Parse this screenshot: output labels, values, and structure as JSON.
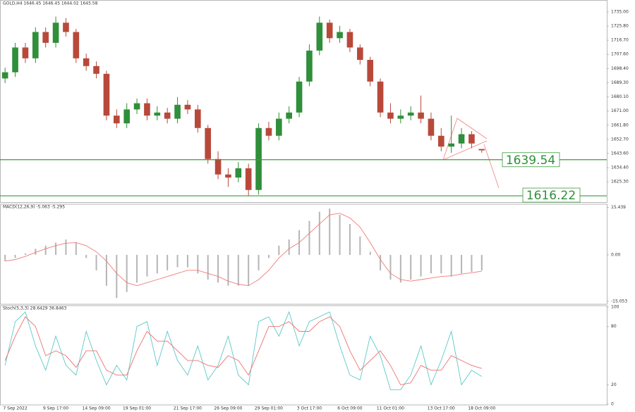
{
  "chart_data": [
    {
      "type": "candlestick",
      "title": "GOLD,H4  1646.45 1646.45 1644.02 1645.58",
      "categories": [
        null,
        "7 Sep 2022",
        null,
        null,
        null,
        "9 Sep 17:00",
        null,
        null,
        null,
        "14 Sep 09:00",
        null,
        null,
        null,
        "19 Sep 01:00",
        null,
        null,
        null,
        null,
        "21 Sep 17:00",
        null,
        null,
        null,
        "26 Sep 09:00",
        null,
        null,
        null,
        "29 Sep 01:00",
        null,
        null,
        null,
        "3 Oct 17:00",
        null,
        null,
        null,
        "6 Oct 09:00",
        null,
        null,
        null,
        "11 Oct 01:00",
        null,
        null,
        null,
        null,
        "13 Oct 17:00",
        null,
        null,
        null,
        "18 Oct 09:00"
      ],
      "open": [
        1692,
        1696,
        1712,
        1705,
        1722,
        1715,
        1728,
        1722,
        1705,
        1700,
        1695,
        1668,
        1663,
        1672,
        1676,
        1668,
        1670,
        1666,
        1675,
        1672,
        1660,
        1640,
        1630,
        1628,
        1634,
        1620,
        1660,
        1655,
        1666,
        1670,
        1690,
        1710,
        1728,
        1718,
        1722,
        1712,
        1704,
        1690,
        1670,
        1666,
        1668,
        1670,
        1666,
        1655,
        1648,
        1650,
        1656,
        1646.45
      ],
      "high": [
        1699,
        1715,
        1715,
        1725,
        1725,
        1732,
        1731,
        1724,
        1708,
        1703,
        1697,
        1672,
        1676,
        1679,
        1679,
        1674,
        1673,
        1680,
        1678,
        1675,
        1662,
        1645,
        1634,
        1638,
        1637,
        1663,
        1664,
        1670,
        1674,
        1693,
        1714,
        1732,
        1730,
        1726,
        1724,
        1714,
        1706,
        1692,
        1676,
        1672,
        1674,
        1681,
        1670,
        1660,
        1668,
        1660,
        1658,
        1646.45
      ],
      "low": [
        1689,
        1693,
        1702,
        1702,
        1712,
        1712,
        1719,
        1702,
        1697,
        1692,
        1665,
        1660,
        1660,
        1669,
        1665,
        1665,
        1663,
        1663,
        1669,
        1657,
        1637,
        1627,
        1622,
        1625,
        1616.5,
        1617,
        1652,
        1652,
        1663,
        1667,
        1687,
        1707,
        1715,
        1715,
        1709,
        1701,
        1687,
        1667,
        1663,
        1663,
        1665,
        1663,
        1652,
        1645,
        1644,
        1647,
        1647,
        1644.02
      ],
      "close": [
        1696,
        1712,
        1705,
        1722,
        1715,
        1728,
        1722,
        1705,
        1700,
        1695,
        1668,
        1663,
        1672,
        1676,
        1668,
        1670,
        1666,
        1675,
        1672,
        1660,
        1640,
        1630,
        1628,
        1634,
        1620,
        1660,
        1655,
        1666,
        1670,
        1690,
        1710,
        1728,
        1718,
        1722,
        1712,
        1704,
        1690,
        1670,
        1666,
        1668,
        1670,
        1666,
        1655,
        1648,
        1650,
        1656,
        1650,
        1645.58
      ],
      "up_color": "#2f8f3a",
      "down_color": "#b8493a",
      "level_color": "#3a9a3a",
      "levels": [
        1639.54,
        1616.22
      ],
      "ylim": [
        1612.6,
        1741.3
      ],
      "yticks": [
        {
          "value": 1735,
          "label": "1735.00"
        },
        {
          "value": 1725.8,
          "label": "1725.80"
        },
        {
          "value": 1716.7,
          "label": "1716.70"
        },
        {
          "value": 1707.6,
          "label": "1707.60"
        },
        {
          "value": 1698.4,
          "label": "1698.40"
        },
        {
          "value": 1689.3,
          "label": "1689.30"
        },
        {
          "value": 1680.1,
          "label": "1680.10"
        },
        {
          "value": 1671,
          "label": "1671.00"
        },
        {
          "value": 1661.8,
          "label": "1661.80"
        },
        {
          "value": 1652.7,
          "label": "1652.70"
        },
        {
          "value": 1643.6,
          "label": "1643.60"
        },
        {
          "value": 1634.4,
          "label": "1634.40"
        },
        {
          "value": 1625.3,
          "label": "1625.30"
        }
      ]
    },
    {
      "type": "macd",
      "title": "MACD(12,26,9) -5.063 -5.295",
      "histogram": [
        -2,
        -1,
        0.5,
        2,
        3,
        4,
        5,
        4,
        -1,
        -5,
        -10,
        -14,
        -12,
        -9,
        -7,
        -6,
        -5,
        -4,
        -4,
        -6,
        -8,
        -9,
        -10,
        -10,
        -10,
        -5,
        -1,
        3,
        5,
        8,
        11,
        14,
        15,
        13,
        10,
        6,
        1,
        -5,
        -8,
        -9,
        -8,
        -7,
        -6,
        -6,
        -7,
        -6,
        -5.5,
        -5.063
      ],
      "signal": [
        -2,
        -1.5,
        -0.5,
        0.8,
        2,
        3,
        3.8,
        4,
        3,
        1,
        -2,
        -6,
        -9,
        -10,
        -9,
        -8,
        -7,
        -6,
        -5,
        -5,
        -6,
        -7,
        -8.5,
        -9.5,
        -10,
        -8,
        -5,
        -1,
        2,
        4,
        7,
        10,
        13,
        13.5,
        12,
        9,
        4,
        -1.5,
        -6,
        -8,
        -8.5,
        -8,
        -7.5,
        -7,
        -6.8,
        -6.2,
        -5.8,
        -5.295
      ],
      "histogram_color": "#b5b5b5",
      "signal_color": "#f07a7a",
      "ylim": [
        -16,
        16.2
      ],
      "yticks": [
        {
          "value": 15.439,
          "label": "15.439"
        },
        {
          "value": 0,
          "label": "0.00"
        },
        {
          "value": -15.053,
          "label": "-15.053"
        }
      ]
    },
    {
      "type": "stochastic",
      "title": "Stoch(5,3,3) 28.6429 36.8463",
      "k": [
        40,
        85,
        95,
        60,
        35,
        70,
        40,
        30,
        75,
        45,
        20,
        40,
        25,
        80,
        85,
        40,
        75,
        45,
        30,
        60,
        25,
        40,
        70,
        30,
        20,
        85,
        90,
        70,
        95,
        60,
        85,
        90,
        95,
        60,
        30,
        25,
        70,
        50,
        15,
        15,
        30,
        60,
        20,
        45,
        75,
        20,
        35,
        28.6429
      ],
      "d": [
        45,
        70,
        90,
        80,
        50,
        55,
        50,
        38,
        55,
        55,
        35,
        30,
        30,
        55,
        75,
        65,
        65,
        55,
        45,
        45,
        40,
        38,
        50,
        45,
        30,
        55,
        80,
        80,
        85,
        75,
        75,
        85,
        90,
        80,
        55,
        35,
        45,
        55,
        40,
        20,
        22,
        40,
        35,
        35,
        50,
        45,
        40,
        36.8463
      ],
      "k_color": "#5cc8c8",
      "d_color": "#f07070",
      "ylim": [
        0,
        100
      ],
      "yticks": [
        100,
        80,
        20,
        0
      ]
    }
  ]
}
